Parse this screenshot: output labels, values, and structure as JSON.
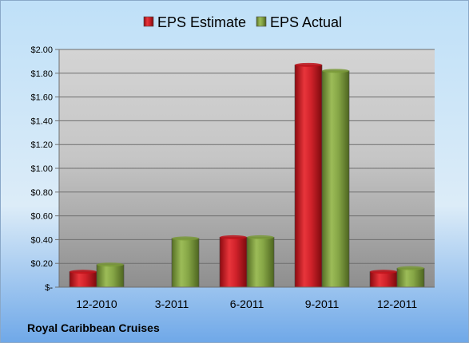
{
  "chart_data": {
    "type": "bar",
    "title": "",
    "xlabel": "",
    "ylabel": "",
    "categories": [
      "12-2010",
      "3-2011",
      "6-2011",
      "9-2011",
      "12-2011"
    ],
    "series": [
      {
        "name": "EPS Estimate",
        "color": "#c0141c",
        "values": [
          0.13,
          null,
          0.42,
          1.87,
          0.13
        ]
      },
      {
        "name": "EPS Actual",
        "color": "#7a9a3a",
        "values": [
          0.19,
          0.41,
          0.42,
          1.82,
          0.16
        ]
      }
    ],
    "ylim": [
      0,
      2.0
    ],
    "yticks": [
      {
        "value": 0.0,
        "label": "$-"
      },
      {
        "value": 0.2,
        "label": "$0.20"
      },
      {
        "value": 0.4,
        "label": "$0.40"
      },
      {
        "value": 0.6,
        "label": "$0.60"
      },
      {
        "value": 0.8,
        "label": "$0.80"
      },
      {
        "value": 1.0,
        "label": "$1.00"
      },
      {
        "value": 1.2,
        "label": "$1.20"
      },
      {
        "value": 1.4,
        "label": "$1.40"
      },
      {
        "value": 1.6,
        "label": "$1.60"
      },
      {
        "value": 1.8,
        "label": "$1.80"
      },
      {
        "value": 2.0,
        "label": "$2.00"
      }
    ],
    "grid": true,
    "legend_position": "top-center",
    "caption": "Royal Caribbean Cruises"
  }
}
